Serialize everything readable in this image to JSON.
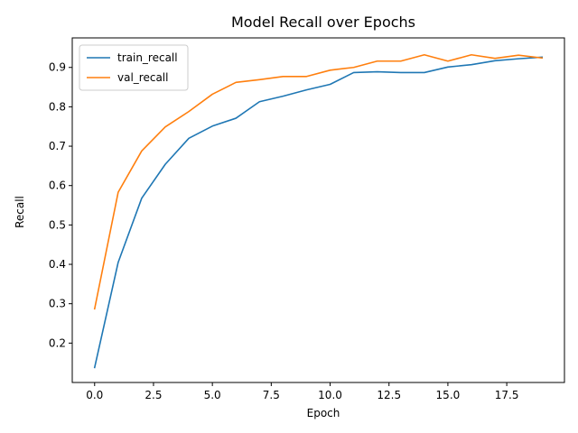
{
  "chart_data": {
    "type": "line",
    "title": "Model Recall over Epochs",
    "xlabel": "Epoch",
    "ylabel": "Recall",
    "xlim": [
      -0.95,
      19.95
    ],
    "ylim": [
      0.1,
      0.975
    ],
    "x_ticks": [
      0.0,
      2.5,
      5.0,
      7.5,
      10.0,
      12.5,
      15.0,
      17.5
    ],
    "x_tick_labels": [
      "0.0",
      "2.5",
      "5.0",
      "7.5",
      "10.0",
      "12.5",
      "15.0",
      "17.5"
    ],
    "y_ticks": [
      0.2,
      0.3,
      0.4,
      0.5,
      0.6,
      0.7,
      0.8,
      0.9
    ],
    "y_tick_labels": [
      "0.2",
      "0.3",
      "0.4",
      "0.5",
      "0.6",
      "0.7",
      "0.8",
      "0.9"
    ],
    "grid": false,
    "legend_position": "top-left",
    "x": [
      0,
      1,
      2,
      3,
      4,
      5,
      6,
      7,
      8,
      9,
      10,
      11,
      12,
      13,
      14,
      15,
      16,
      17,
      18,
      19
    ],
    "series": [
      {
        "name": "train_recall",
        "color": "#1f77b4",
        "values": [
          0.138,
          0.405,
          0.568,
          0.654,
          0.72,
          0.751,
          0.771,
          0.813,
          0.827,
          0.843,
          0.857,
          0.887,
          0.889,
          0.887,
          0.887,
          0.901,
          0.907,
          0.917,
          0.922,
          0.926
        ]
      },
      {
        "name": "val_recall",
        "color": "#ff7f0e",
        "values": [
          0.287,
          0.583,
          0.688,
          0.749,
          0.788,
          0.832,
          0.862,
          0.869,
          0.877,
          0.877,
          0.893,
          0.9,
          0.916,
          0.916,
          0.932,
          0.916,
          0.932,
          0.923,
          0.931,
          0.924
        ]
      }
    ]
  }
}
